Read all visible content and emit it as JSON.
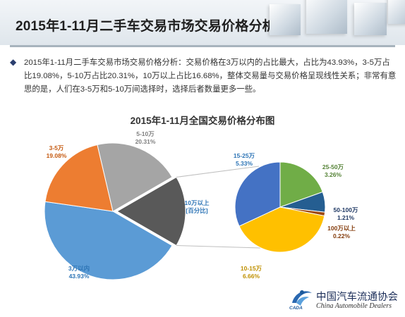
{
  "header": {
    "title": "2015年1-11月二手车交易市场交易价格分析"
  },
  "summary": {
    "bullet": "◆",
    "text": "2015年1-11月二手车交易市场交易价格分析：交易价格在3万以内的占比最大，占比为43.93%，3-5万占比19.08%，5-10万占比20.31%，10万以上占比16.68%，整体交易量与交易价格呈现线性关系；非常有意思的是，人们在3-5万和5-10万间选择时，选择后者数量更多一些。"
  },
  "chart_data": [
    {
      "type": "pie",
      "title": "2015年1-11月全国交易价格分布图",
      "labels": [
        "3万以内",
        "3-5万",
        "5-10万",
        "10万以上\n[百分比]"
      ],
      "values": [
        43.93,
        19.08,
        20.31,
        16.68
      ],
      "value_labels": [
        "43.93%",
        "19.08%",
        "20.31%",
        ""
      ],
      "colors": [
        "#5b9bd5",
        "#ed7d31",
        "#a5a5a5",
        "#595959"
      ]
    },
    {
      "type": "pie",
      "title": "",
      "labels": [
        "10-15万",
        "15-25万",
        "25-50万",
        "50-100万",
        "100万以上"
      ],
      "values": [
        6.66,
        5.33,
        3.26,
        1.21,
        0.22
      ],
      "value_labels": [
        "6.66%",
        "5.33%",
        "3.26%",
        "1.21%",
        "0.22%"
      ],
      "colors": [
        "#ffc000",
        "#4472c4",
        "#70ad47",
        "#255e91",
        "#9e480e"
      ]
    }
  ],
  "logo": {
    "name_cn": "中国汽车流通协会",
    "name_en": "China Automobile Dealers",
    "abbr": "CADA"
  }
}
